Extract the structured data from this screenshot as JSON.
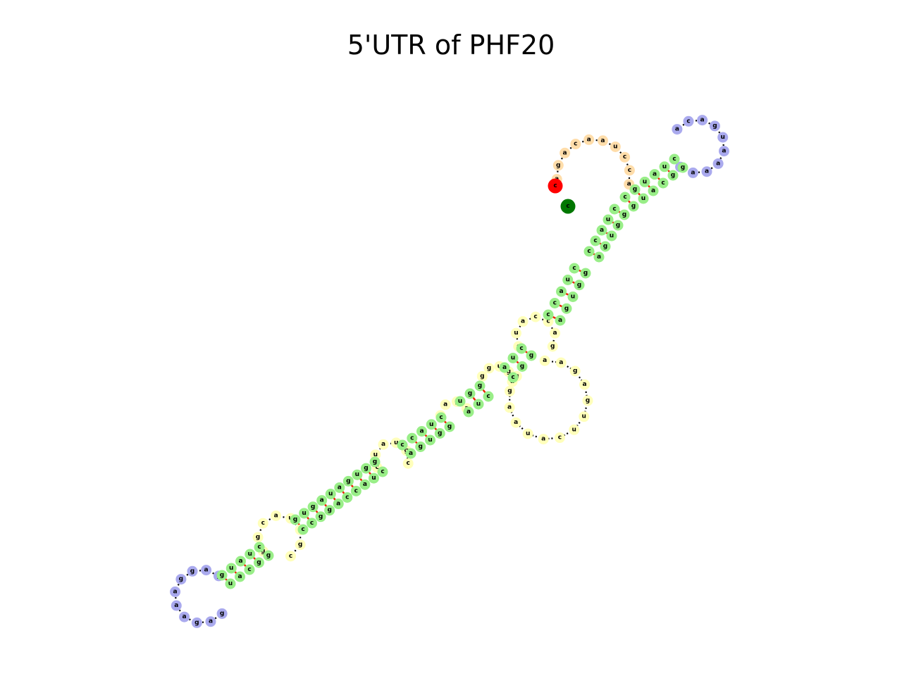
{
  "title": "5'UTR of PHF20",
  "colors": {
    "stem": "#99ee88",
    "loop": "#ffffbb",
    "hairpin": "#aaaaee",
    "ends": "#ffddaa",
    "start": "#ff0000",
    "end": "#007700",
    "backbone": "#000000",
    "pair": "#ee2200"
  },
  "hairpin_top": "acaguaaaag",
  "hairpin_bottom": "gagaaaggag",
  "terminal_loop": "agacaaucca",
  "stem_top_left": "cuaug",
  "stem_top_right": "ggcau",
  "lower_stem_left": "cuaccaggc",
  "lower_stem_right": "ggugauagu",
  "central_loop": "aagaguucauaagg",
  "start_base": "c",
  "end_base": "c"
}
